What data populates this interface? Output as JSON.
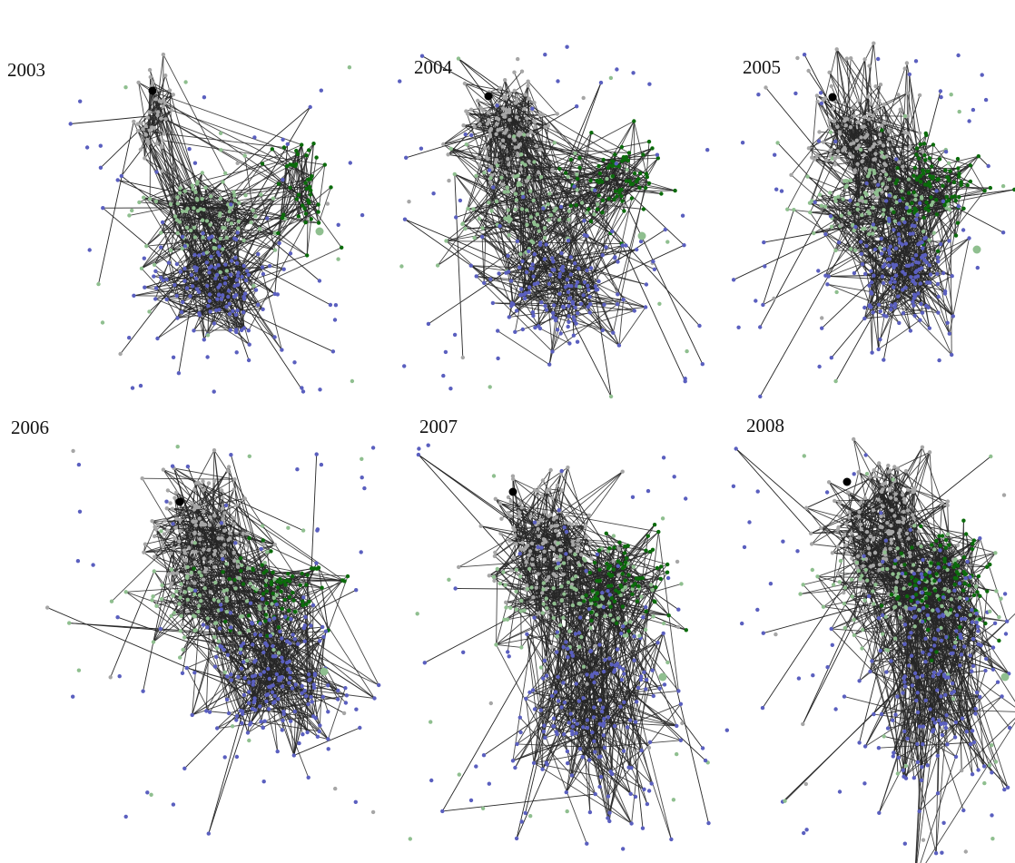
{
  "figure": {
    "panels": [
      {
        "year": "2003"
      },
      {
        "year": "2004"
      },
      {
        "year": "2005"
      },
      {
        "year": "2006"
      },
      {
        "year": "2007"
      },
      {
        "year": "2008"
      }
    ]
  },
  "colors": {
    "background": "#ffffff",
    "edge": "#262626",
    "gray_cluster": "#a6a6a6",
    "gray_dark": "#7a7a7a",
    "light_green_cluster": "#8fbf8f",
    "dark_green_cluster": "#0b6b0b",
    "blue_cluster": "#5a5fbf",
    "highlight_node": "#000000"
  }
}
